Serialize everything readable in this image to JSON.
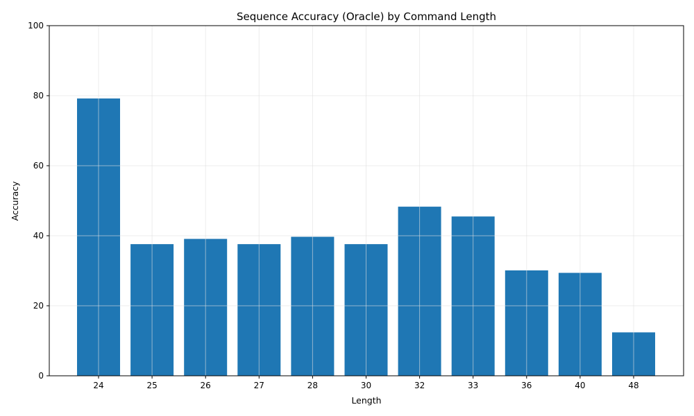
{
  "chart_data": {
    "type": "bar",
    "title": "Sequence Accuracy (Oracle) by Command Length",
    "xlabel": "Length",
    "ylabel": "Accuracy",
    "categories": [
      "24",
      "25",
      "26",
      "27",
      "28",
      "30",
      "32",
      "33",
      "36",
      "40",
      "48"
    ],
    "values": [
      79.2,
      37.6,
      39.1,
      37.6,
      39.7,
      37.6,
      48.3,
      45.5,
      30.1,
      29.4,
      12.4
    ],
    "ylim": [
      0,
      100
    ],
    "yticks": [
      "0",
      "20",
      "40",
      "60",
      "80",
      "100"
    ],
    "grid": true,
    "bar_color": "#1f77b4",
    "grid_color": "#e0e0e0"
  }
}
